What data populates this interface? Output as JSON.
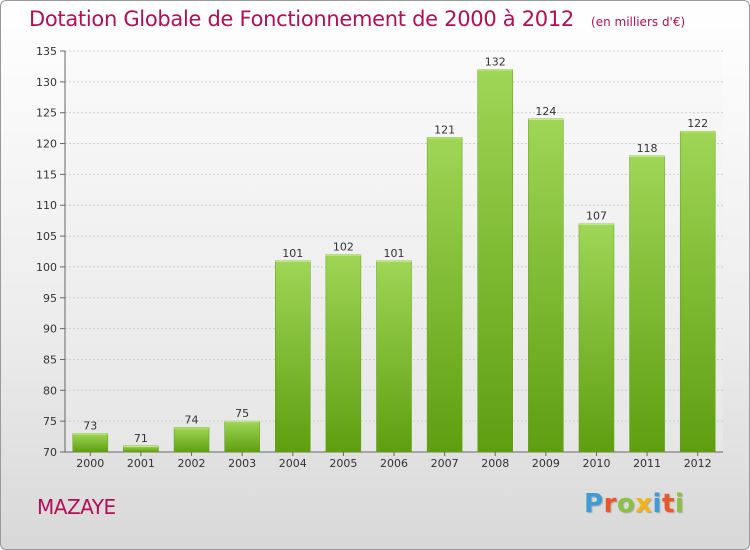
{
  "chart_data": {
    "type": "bar",
    "title": "Dotation Globale de Fonctionnement de 2000 à 2012",
    "subtitle": "(en milliers d'€)",
    "xlabel": "",
    "ylabel": "",
    "categories": [
      "2000",
      "2001",
      "2002",
      "2003",
      "2004",
      "2005",
      "2006",
      "2007",
      "2008",
      "2009",
      "2010",
      "2011",
      "2012"
    ],
    "values": [
      73,
      71,
      74,
      75,
      101,
      102,
      101,
      121,
      132,
      124,
      107,
      118,
      122
    ],
    "ylim": [
      70,
      135
    ],
    "yticks": [
      70,
      75,
      80,
      85,
      90,
      95,
      100,
      105,
      110,
      115,
      120,
      125,
      130,
      135
    ],
    "grid": true,
    "legend": "none",
    "bar_color_top": "#9fd656",
    "bar_color_bottom": "#5e9e10"
  },
  "footer": {
    "commune": "MAZAYE",
    "logo": "Proxiti"
  },
  "colors": {
    "title": "#b40e57",
    "logo_letters": [
      "#3d9bd6",
      "#e8562a",
      "#8bc140",
      "#f2b417",
      "#3d9bd6",
      "#e8562a",
      "#8bc140"
    ]
  }
}
